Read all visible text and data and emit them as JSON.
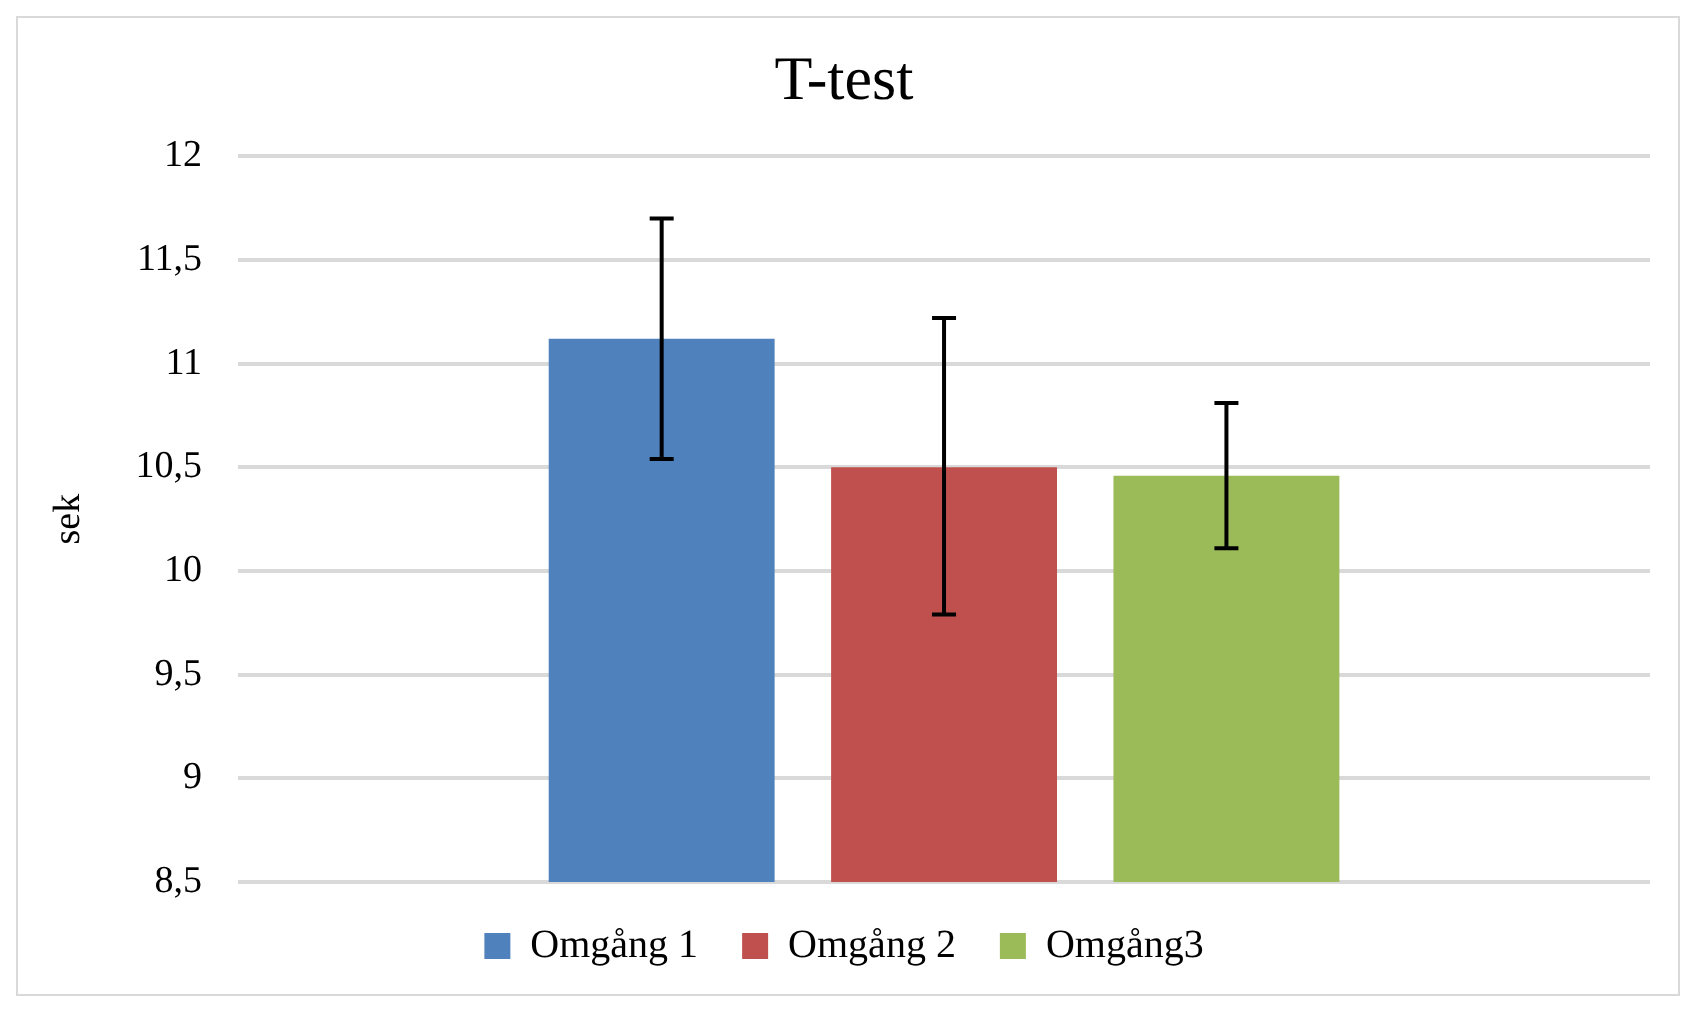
{
  "chart_data": {
    "type": "bar",
    "title": "T-test",
    "ylabel": "sek",
    "categories": [
      null
    ],
    "series": [
      {
        "name": "Omgång 1",
        "color": "#4f81bd",
        "values": [
          11.12
        ],
        "errors": [
          [
            10.54,
            11.7
          ]
        ]
      },
      {
        "name": "Omgång 2",
        "color": "#c0504d",
        "values": [
          10.5
        ],
        "errors": [
          [
            9.79,
            11.22
          ]
        ]
      },
      {
        "name": "Omgång3",
        "color": "#9bbb59",
        "values": [
          10.46
        ],
        "errors": [
          [
            10.11,
            10.81
          ]
        ]
      }
    ],
    "ylim": [
      8.5,
      12
    ],
    "yticks": [
      {
        "value": 8.5,
        "label": "8,5"
      },
      {
        "value": 9,
        "label": "9"
      },
      {
        "value": 9.5,
        "label": "9,5"
      },
      {
        "value": 10,
        "label": "10"
      },
      {
        "value": 10.5,
        "label": "10,5"
      },
      {
        "value": 11,
        "label": "11"
      },
      {
        "value": 11.5,
        "label": "11,5"
      },
      {
        "value": 12,
        "label": "12"
      }
    ],
    "grid": "y",
    "legend": "bottom"
  }
}
